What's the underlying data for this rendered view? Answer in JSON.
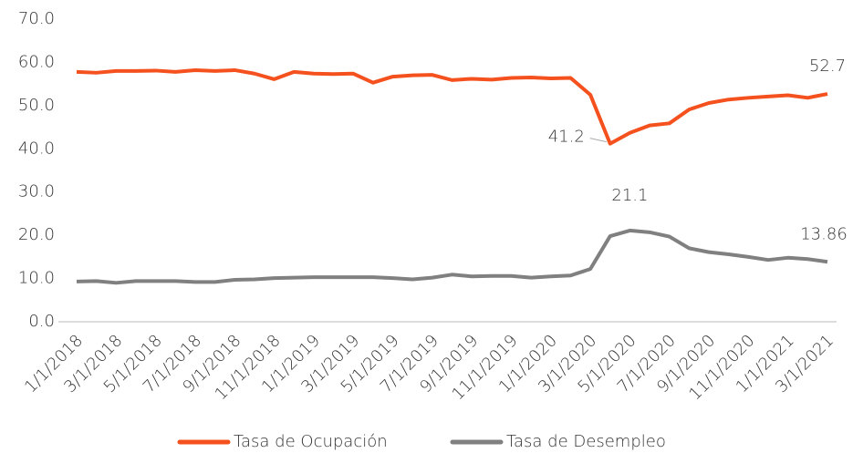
{
  "chart_data": {
    "type": "line",
    "categories": [
      "1/1/2018",
      null,
      "3/1/2018",
      null,
      "5/1/2018",
      null,
      "7/1/2018",
      null,
      "9/1/2018",
      null,
      "11/1/2018",
      null,
      "1/1/2019",
      null,
      "3/1/2019",
      null,
      "5/1/2019",
      null,
      "7/1/2019",
      null,
      "9/1/2019",
      null,
      "11/1/2019",
      null,
      "1/1/2020",
      null,
      "3/1/2020",
      null,
      "5/1/2020",
      null,
      "7/1/2020",
      null,
      "9/1/2020",
      null,
      "11/1/2020",
      null,
      "1/1/2021",
      null,
      "3/1/2021"
    ],
    "series": [
      {
        "name": "Tasa de Ocupación",
        "color": "#f4511e",
        "values": [
          57.8,
          57.6,
          58.0,
          58.0,
          58.1,
          57.8,
          58.2,
          58.0,
          58.2,
          57.4,
          56.1,
          57.8,
          57.4,
          57.3,
          57.4,
          55.3,
          56.7,
          57.0,
          57.1,
          55.9,
          56.2,
          56.0,
          56.4,
          56.5,
          56.3,
          56.4,
          52.5,
          41.2,
          43.7,
          45.4,
          45.9,
          49.1,
          50.6,
          51.4,
          51.8,
          52.1,
          52.4,
          51.8,
          52.7
        ]
      },
      {
        "name": "Tasa de Desempleo",
        "color": "#808080",
        "values": [
          9.3,
          9.4,
          9.0,
          9.4,
          9.4,
          9.4,
          9.2,
          9.2,
          9.7,
          9.8,
          10.1,
          10.2,
          10.3,
          10.3,
          10.3,
          10.3,
          10.1,
          9.8,
          10.2,
          10.9,
          10.5,
          10.6,
          10.6,
          10.2,
          10.5,
          10.7,
          12.2,
          19.8,
          21.1,
          20.7,
          19.7,
          17.0,
          16.1,
          15.6,
          15.0,
          14.3,
          14.8,
          14.5,
          13.86
        ]
      }
    ],
    "ylim": [
      0,
      70
    ],
    "yticks": [
      {
        "value": 0,
        "label": "0.0"
      },
      {
        "value": 10,
        "label": "10.0"
      },
      {
        "value": 20,
        "label": "20.0"
      },
      {
        "value": 30,
        "label": "30.0"
      },
      {
        "value": 40,
        "label": "40.0"
      },
      {
        "value": 50,
        "label": "50.0"
      },
      {
        "value": 60,
        "label": "60.0"
      },
      {
        "value": 70,
        "label": "70.0"
      }
    ],
    "grid": false,
    "legend": "bottom"
  }
}
